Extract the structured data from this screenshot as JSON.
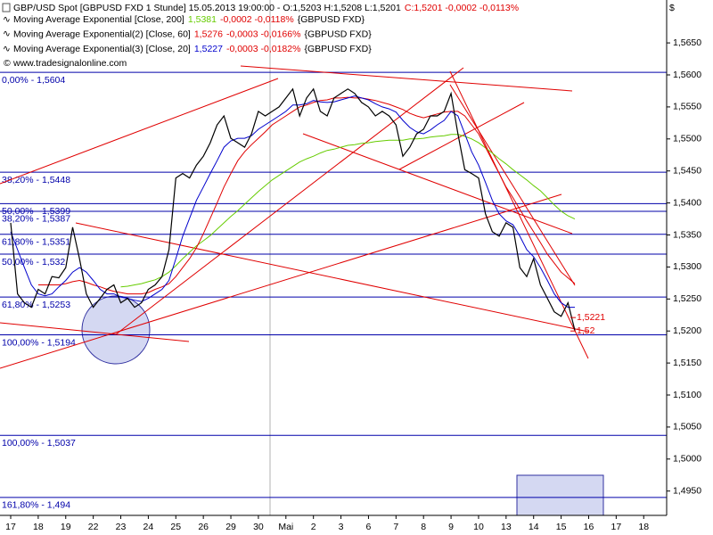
{
  "chart_data": {
    "type": "line",
    "title_parts": [
      {
        "text": "GBP/USD Spot [GBPUSD FXD  1 Stunde] 15.05.2013 19:00:00 - O:1,5203 H:1,5208 L:1,5201",
        "color": "#000000"
      },
      {
        "text": "C:1,5201 -0,0002 -0,0113%",
        "color": "#e00000"
      }
    ],
    "source": "www.tradesignalonline.com",
    "currency": "$",
    "categories": [
      "17",
      null,
      null,
      null,
      "18",
      null,
      null,
      null,
      "19",
      null,
      null,
      null,
      "22",
      null,
      null,
      null,
      "23",
      null,
      null,
      null,
      "24",
      null,
      null,
      null,
      "25",
      null,
      null,
      null,
      "26",
      null,
      null,
      null,
      "29",
      null,
      null,
      null,
      "30",
      null,
      null,
      null,
      "Mai",
      null,
      null,
      null,
      "2",
      null,
      null,
      null,
      "3",
      null,
      null,
      null,
      "6",
      null,
      null,
      null,
      "7",
      null,
      null,
      null,
      "8",
      null,
      null,
      null,
      "9",
      null,
      null,
      null,
      "10",
      null,
      null,
      null,
      "13",
      null,
      null,
      null,
      "14",
      null,
      null,
      null,
      "15",
      null,
      null,
      null,
      "16",
      null,
      null,
      null,
      "17",
      null,
      null,
      null,
      "18",
      null,
      null,
      null
    ],
    "series": [
      {
        "name": "GBP/USD",
        "color": "#000000",
        "width": 1.2,
        "values": [
          1.5369,
          1.5258,
          1.5244,
          1.5237,
          1.5265,
          1.5258,
          1.5285,
          1.5283,
          1.5299,
          1.5362,
          1.5313,
          1.5258,
          1.5237,
          1.5251,
          1.5265,
          1.5272,
          1.5244,
          1.5251,
          1.5237,
          1.5244,
          1.5265,
          1.5272,
          1.5285,
          1.5327,
          1.5439,
          1.5446,
          1.5439,
          1.5459,
          1.5473,
          1.5494,
          1.5522,
          1.5536,
          1.5501,
          1.5494,
          1.5487,
          1.5508,
          1.5543,
          1.5536,
          1.5543,
          1.555,
          1.5564,
          1.5578,
          1.5536,
          1.5564,
          1.5578,
          1.5543,
          1.5536,
          1.5564,
          1.5571,
          1.5578,
          1.5571,
          1.5557,
          1.555,
          1.5536,
          1.5543,
          1.5536,
          1.5522,
          1.5473,
          1.5487,
          1.5508,
          1.5515,
          1.5536,
          1.5536,
          1.5543,
          1.5571,
          1.5508,
          1.5452,
          1.5446,
          1.5439,
          1.5383,
          1.5355,
          1.5348,
          1.5369,
          1.5362,
          1.5299,
          1.5285,
          1.5313,
          1.5272,
          1.5251,
          1.523,
          1.5223,
          1.5244,
          1.5201,
          null,
          null,
          null,
          null,
          null,
          null,
          null,
          null,
          null,
          null,
          null,
          null,
          null
        ]
      },
      {
        "name": "Moving Average Exponential [Close, 200]",
        "last_label": "1,5381",
        "change_label": "-0,0002 -0,0118%",
        "symbol": "{GBPUSD FXD}",
        "color": "#66cc00",
        "width": 1,
        "values": [
          null,
          null,
          null,
          null,
          null,
          null,
          null,
          null,
          null,
          null,
          null,
          null,
          null,
          null,
          null,
          null,
          1.5269,
          1.527,
          1.5272,
          1.5274,
          1.5277,
          1.528,
          1.5285,
          1.5292,
          1.5302,
          1.5313,
          1.5323,
          1.5333,
          1.5341,
          1.5349,
          1.5359,
          1.5369,
          1.5379,
          1.5388,
          1.5398,
          1.5408,
          1.5418,
          1.5427,
          1.5436,
          1.5443,
          1.545,
          1.5457,
          1.5464,
          1.5469,
          1.5473,
          1.5478,
          1.5482,
          1.5484,
          1.5487,
          1.549,
          1.5491,
          1.5493,
          1.5494,
          1.5496,
          1.5497,
          1.5498,
          1.5498,
          1.5498,
          1.55,
          1.55,
          1.5501,
          1.5503,
          1.5504,
          1.5505,
          1.5507,
          1.5507,
          1.5504,
          1.55,
          1.5494,
          1.5486,
          1.5478,
          1.5469,
          1.5461,
          1.5452,
          1.5444,
          1.5436,
          1.5427,
          1.5419,
          1.5408,
          1.5397,
          1.5387,
          1.538,
          1.5375,
          null,
          null,
          null,
          null,
          null,
          null,
          null,
          null,
          null,
          null,
          null,
          null,
          null
        ]
      },
      {
        "name": "Moving Average Exponential(2) [Close, 60]",
        "last_label": "1,5276",
        "change_label": "-0,0003 -0,0166%",
        "symbol": "{GBPUSD FXD}",
        "color": "#e00000",
        "width": 1,
        "values": [
          null,
          null,
          null,
          null,
          1.5272,
          1.5272,
          1.5272,
          1.5272,
          1.5274,
          1.5277,
          1.5279,
          1.5276,
          1.5272,
          1.5269,
          1.5265,
          1.5262,
          1.526,
          1.5258,
          1.5258,
          1.5258,
          1.526,
          1.5265,
          1.5269,
          1.5274,
          1.5285,
          1.5299,
          1.5313,
          1.533,
          1.5352,
          1.5376,
          1.54,
          1.5425,
          1.5446,
          1.5466,
          1.548,
          1.5491,
          1.5501,
          1.5511,
          1.5522,
          1.5529,
          1.5536,
          1.5543,
          1.555,
          1.5553,
          1.5557,
          1.556,
          1.5561,
          1.5564,
          1.5564,
          1.5565,
          1.5564,
          1.5564,
          1.5562,
          1.556,
          1.5557,
          1.5554,
          1.555,
          1.5546,
          1.554,
          1.5536,
          1.5533,
          1.5536,
          1.5539,
          1.5542,
          1.5543,
          1.5543,
          1.5536,
          1.5522,
          1.5508,
          1.5487,
          1.5466,
          1.5446,
          1.5425,
          1.5408,
          1.539,
          1.5372,
          1.5355,
          1.5338,
          1.532,
          1.5306,
          1.5292,
          1.5283,
          1.5274,
          null,
          null,
          null,
          null,
          null,
          null,
          null,
          null,
          null,
          null,
          null,
          null,
          null
        ]
      },
      {
        "name": "Moving Average Exponential(3) [Close, 20]",
        "last_label": "1,5227",
        "change_label": "-0,0003 -0,0182%",
        "symbol": "{GBPUSD FXD}",
        "color": "#0000cc",
        "width": 1,
        "values": [
          1.5355,
          1.5327,
          1.5299,
          1.5272,
          1.5258,
          1.5255,
          1.5258,
          1.5269,
          1.5279,
          1.5292,
          1.5299,
          1.5292,
          1.5279,
          1.5265,
          1.5258,
          1.5258,
          1.5253,
          1.5251,
          1.5248,
          1.5246,
          1.5251,
          1.5258,
          1.5265,
          1.5279,
          1.5313,
          1.5348,
          1.5376,
          1.5404,
          1.5425,
          1.5446,
          1.5466,
          1.5487,
          1.5497,
          1.5501,
          1.5501,
          1.5505,
          1.5515,
          1.5522,
          1.5529,
          1.5536,
          1.5543,
          1.5553,
          1.5553,
          1.5555,
          1.556,
          1.5558,
          1.5557,
          1.5558,
          1.5561,
          1.5564,
          1.5567,
          1.5564,
          1.5561,
          1.5555,
          1.555,
          1.5547,
          1.5542,
          1.5529,
          1.5518,
          1.5511,
          1.5508,
          1.5514,
          1.5522,
          1.5529,
          1.5543,
          1.5536,
          1.5508,
          1.548,
          1.5459,
          1.5432,
          1.5404,
          1.5383,
          1.5372,
          1.5366,
          1.5348,
          1.5327,
          1.5316,
          1.5299,
          1.5279,
          1.5258,
          1.5244,
          1.5237,
          1.5237,
          null,
          null,
          null,
          null,
          null,
          null,
          null,
          null,
          null,
          null,
          null,
          null,
          null
        ]
      }
    ],
    "fib_levels": [
      {
        "value": 1.5604,
        "label": "0,00% - 1,5604"
      },
      {
        "value": 1.5448,
        "label": "38,20% - 1,5448"
      },
      {
        "value": 1.5399,
        "label": "50,00% - 1,5399"
      },
      {
        "value": 1.5387,
        "label": "38,20% - 1,5387"
      },
      {
        "value": 1.5351,
        "label": "61,80% - 1,5351"
      },
      {
        "value": 1.532,
        "label": "50,00% - 1,532"
      },
      {
        "value": 1.5253,
        "label": "61,80% - 1,5253"
      },
      {
        "value": 1.5194,
        "label": "100,00% - 1,5194"
      },
      {
        "value": 1.5037,
        "label": "100,00% - 1,5037"
      },
      {
        "value": 1.494,
        "label": "161,80% - 1,494"
      }
    ],
    "fib_color": "#0000aa",
    "price_labels": [
      {
        "value": 1.5221,
        "label": "1,5221"
      },
      {
        "value": 1.52,
        "label": "1,52"
      }
    ],
    "ylim": [
      1.4912,
      1.5717
    ],
    "yticks": [
      {
        "value": 1.565,
        "label": "1,5650"
      },
      {
        "value": 1.56,
        "label": "1,5600"
      },
      {
        "value": 1.555,
        "label": "1,5550"
      },
      {
        "value": 1.55,
        "label": "1,5500"
      },
      {
        "value": 1.545,
        "label": "1,5450"
      },
      {
        "value": 1.54,
        "label": "1,5400"
      },
      {
        "value": 1.535,
        "label": "1,5350"
      },
      {
        "value": 1.53,
        "label": "1,5300"
      },
      {
        "value": 1.525,
        "label": "1,5250"
      },
      {
        "value": 1.52,
        "label": "1,5200"
      },
      {
        "value": 1.515,
        "label": "1,5150"
      },
      {
        "value": 1.51,
        "label": "1,5100"
      },
      {
        "value": 1.505,
        "label": "1,5050"
      },
      {
        "value": 1.5,
        "label": "1,5000"
      },
      {
        "value": 1.495,
        "label": "1,4950"
      }
    ]
  }
}
